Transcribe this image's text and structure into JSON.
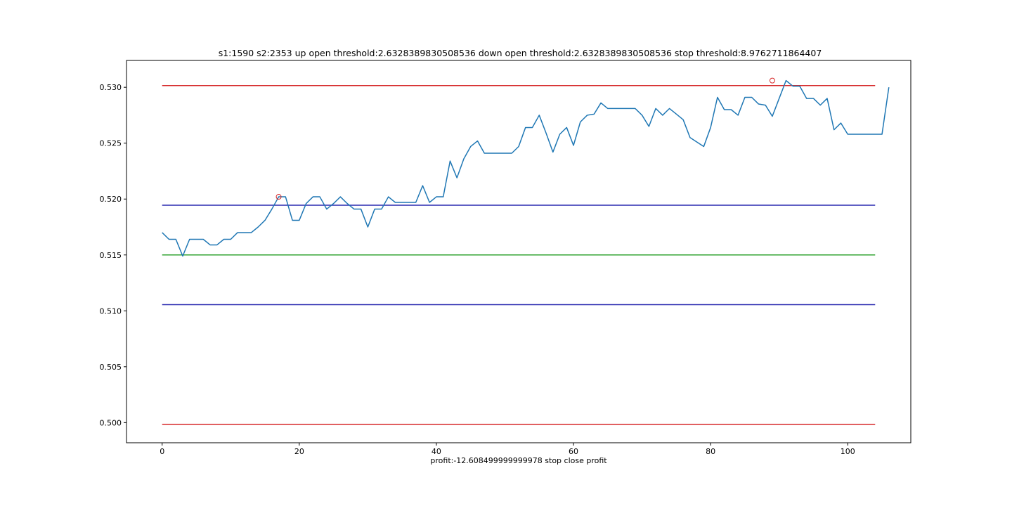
{
  "chart_data": {
    "type": "line",
    "title": "s1:1590 s2:2353 up open threshold:2.6328389830508536 down open threshold:2.6328389830508536 stop threshold:8.9762711864407",
    "xlabel": "profit:-12.608499999999978 stop close profit",
    "ylabel": "",
    "xlim": [
      -5.2,
      109.2
    ],
    "ylim": [
      0.4982,
      0.5324
    ],
    "xticks": [
      0,
      20,
      40,
      60,
      80,
      100
    ],
    "yticks": [
      0.5,
      0.505,
      0.51,
      0.515,
      0.52,
      0.525,
      0.53
    ],
    "ytick_labels": [
      "0.500",
      "0.505",
      "0.510",
      "0.515",
      "0.520",
      "0.525",
      "0.530"
    ],
    "grid": false,
    "series": [
      {
        "color": "#1f77b4",
        "x_start": 0,
        "values": [
          0.517,
          0.5164,
          0.5164,
          0.5149,
          0.5164,
          0.5164,
          0.5164,
          0.5159,
          0.5159,
          0.5164,
          0.5164,
          0.517,
          0.517,
          0.517,
          0.5175,
          0.5181,
          0.5191,
          0.5202,
          0.5202,
          0.5181,
          0.5181,
          0.5196,
          0.5202,
          0.5202,
          0.5191,
          0.5196,
          0.5202,
          0.5196,
          0.5191,
          0.5191,
          0.5175,
          0.5191,
          0.5191,
          0.5202,
          0.5197,
          0.5197,
          0.5197,
          0.5197,
          0.5212,
          0.5197,
          0.5202,
          0.5202,
          0.5234,
          0.5219,
          0.5236,
          0.5247,
          0.5252,
          0.5241,
          0.5241,
          0.5241,
          0.5241,
          0.5241,
          0.5247,
          0.5264,
          0.5264,
          0.5275,
          0.5259,
          0.5242,
          0.5258,
          0.5264,
          0.5248,
          0.5269,
          0.5275,
          0.5276,
          0.5286,
          0.5281,
          0.5281,
          0.5281,
          0.5281,
          0.5281,
          0.5275,
          0.5265,
          0.5281,
          0.5275,
          0.5281,
          0.5276,
          0.5271,
          0.5255,
          0.5251,
          0.5247,
          0.5264,
          0.5291,
          0.528,
          0.528,
          0.5275,
          0.5291,
          0.5291,
          0.5285,
          0.5284,
          0.5274,
          0.529,
          0.5306,
          0.5301,
          0.5301,
          0.529,
          0.529,
          0.5284,
          0.529,
          0.5262,
          0.5268,
          0.5258,
          0.5258,
          0.5258,
          0.5258,
          0.5258,
          0.5258,
          0.53
        ]
      }
    ],
    "hlines": [
      {
        "y": 0.53015,
        "color": "#d62728"
      },
      {
        "y": 0.51945,
        "color": "#2a2ab0"
      },
      {
        "y": 0.515,
        "color": "#2ca02c"
      },
      {
        "y": 0.51055,
        "color": "#2a2ab0"
      },
      {
        "y": 0.49985,
        "color": "#d62728"
      }
    ],
    "hline_x_range": [
      0,
      104
    ],
    "markers": [
      {
        "x": 17,
        "y": 0.5202,
        "color": "#d62728",
        "shape": "open-circle"
      },
      {
        "x": 89,
        "y": 0.5306,
        "color": "#d62728",
        "shape": "open-circle"
      }
    ]
  }
}
